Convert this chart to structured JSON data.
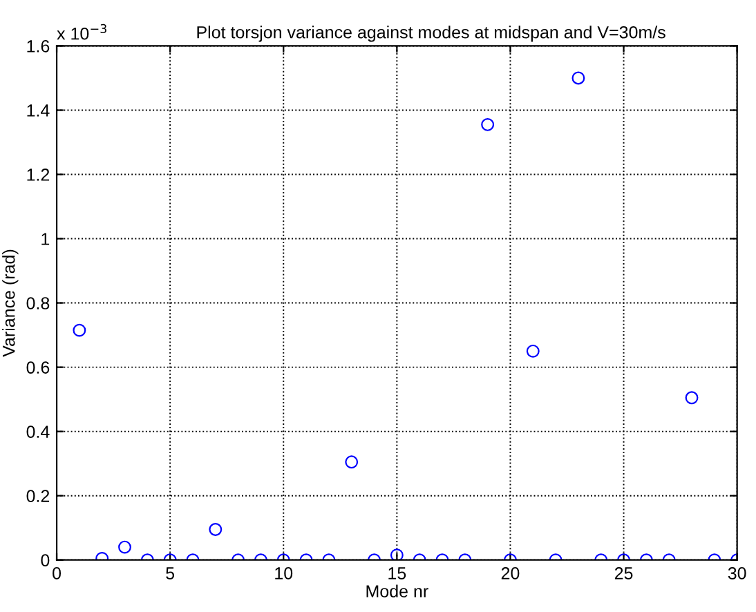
{
  "chart_data": {
    "type": "scatter",
    "title": "Plot torsjon variance against modes at midspan and V=30m/s",
    "xlabel": "Mode nr",
    "ylabel": "Variance (rad)",
    "annotations": [
      "x 10$^{−3}$"
    ],
    "x": [
      1,
      2,
      3,
      4,
      5,
      6,
      7,
      8,
      9,
      10,
      11,
      12,
      13,
      14,
      15,
      16,
      17,
      18,
      19,
      20,
      21,
      22,
      23,
      24,
      25,
      26,
      27,
      28,
      29,
      30
    ],
    "series": [
      {
        "color": "#0000ff",
        "values": [
          0.715,
          0.005,
          0.04,
          0,
          0,
          0,
          0.095,
          0,
          0,
          0,
          0,
          0,
          0.305,
          0,
          0.015,
          0,
          0,
          0,
          1.355,
          0,
          0.65,
          0,
          1.5,
          0,
          0,
          0,
          0,
          0.505,
          0,
          0
        ]
      }
    ],
    "marker": "circle",
    "grid": true,
    "xlim": [
      0,
      30
    ],
    "xticks": [
      0,
      5,
      10,
      15,
      20,
      25,
      30
    ],
    "ylim": [
      0,
      1.6
    ],
    "yticks": [
      0,
      0.2,
      0.4,
      0.6,
      0.8,
      1,
      1.2,
      1.4,
      1.6
    ]
  }
}
